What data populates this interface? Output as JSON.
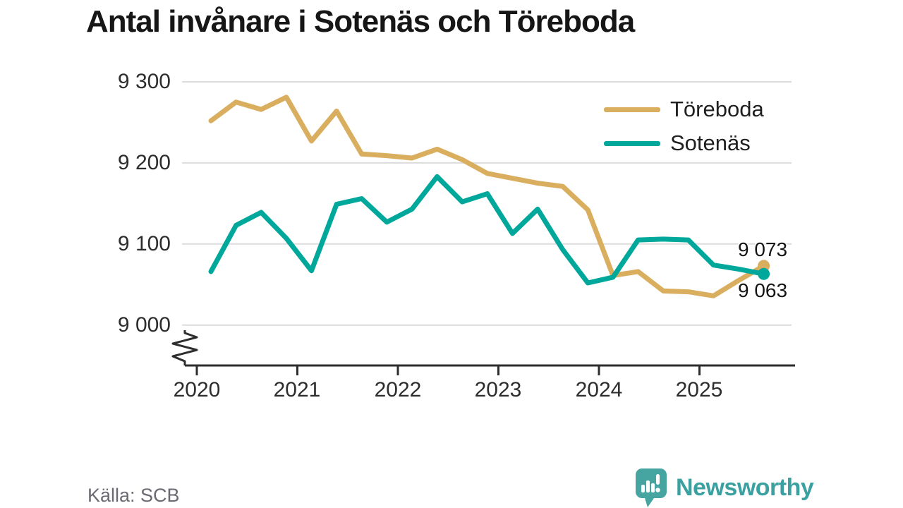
{
  "title": "Antal invånare i Sotenäs och Töreboda",
  "source": "Källa: SCB",
  "branding": {
    "name": "Newsworthy",
    "bubble_color": "#47a5a1",
    "text_color": "#3ba0a0"
  },
  "colors": {
    "toreboda": "#d9ae5f",
    "sotenas": "#00a89b",
    "gridline": "#dcdcdc",
    "axis": "#2d2d2d",
    "title_text": "#161616",
    "tick_text": "#2d2d2d",
    "source_text": "#6a6a73"
  },
  "chart_data": {
    "type": "line",
    "title": "Antal invånare i Sotenäs och Töreboda",
    "xlabel": "",
    "ylabel": "",
    "ylim": [
      9000,
      9300
    ],
    "grid": "horizontal",
    "legend_position": "top-right",
    "axis_break": true,
    "yticks": [
      9300,
      9200,
      9100,
      9000
    ],
    "ytick_labels": [
      "9 300",
      "9 200",
      "9 100",
      "9 000"
    ],
    "xticks": [
      2020,
      2021,
      2022,
      2023,
      2024,
      2025
    ],
    "xtick_labels": [
      "2020",
      "2021",
      "2022",
      "2023",
      "2024",
      "2025"
    ],
    "x": [
      "2020 Q1",
      "2020 Q2",
      "2020 Q3",
      "2020 Q4",
      "2021 Q1",
      "2021 Q2",
      "2021 Q3",
      "2021 Q4",
      "2022 Q1",
      "2022 Q2",
      "2022 Q3",
      "2022 Q4",
      "2023 Q1",
      "2023 Q2",
      "2023 Q3",
      "2023 Q4",
      "2024 Q1",
      "2024 Q2",
      "2024 Q3",
      "2024 Q4",
      "2025 Q1",
      "2025 Q2",
      "2025 Q3"
    ],
    "series": [
      {
        "name": "Töreboda",
        "color": "#d9ae5f",
        "end_label": "9 073",
        "values": [
          9252,
          9275,
          9266,
          9281,
          9227,
          9264,
          9211,
          9209,
          9206,
          9217,
          9204,
          9187,
          9181,
          9175,
          9171,
          9142,
          9061,
          9066,
          9042,
          9041,
          9036,
          9055,
          9073
        ]
      },
      {
        "name": "Sotenäs",
        "color": "#00a89b",
        "end_label": "9 063",
        "values": [
          9066,
          9123,
          9139,
          9107,
          9067,
          9149,
          9156,
          9127,
          9143,
          9183,
          9152,
          9162,
          9113,
          9143,
          9093,
          9052,
          9059,
          9105,
          9106,
          9105,
          9074,
          9069,
          9063
        ]
      }
    ]
  }
}
